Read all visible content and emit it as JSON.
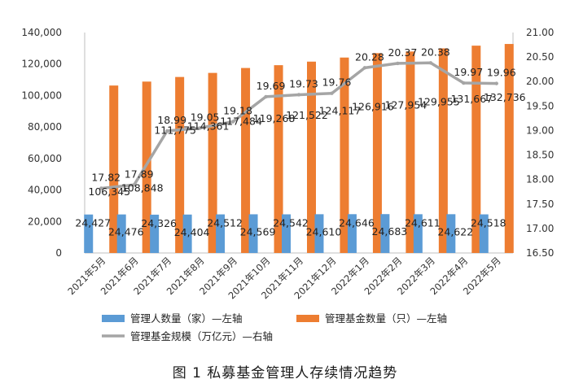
{
  "caption": "图 1 私募基金管理人存续情况趋势",
  "chart_data": {
    "type": "bar",
    "categories": [
      "2021年5月",
      "2021年6月",
      "2021年7月",
      "2021年8月",
      "2021年9月",
      "2021年10月",
      "2021年11月",
      "2021年12月",
      "2022年1月",
      "2022年2月",
      "2022年3月",
      "2022年4月",
      "2022年5月"
    ],
    "series": [
      {
        "name": "管理人数量（家）—左轴",
        "type": "bar",
        "axis": "left",
        "color": "#5B9BD5",
        "values": [
          24427,
          24476,
          24326,
          24404,
          24512,
          24569,
          24542,
          24610,
          24646,
          24683,
          24611,
          24622,
          24518
        ],
        "labels": [
          "24,427",
          "24,476",
          "24,326",
          "24,404",
          "24,512",
          "24,569",
          "24,542",
          "24,610",
          "24,646",
          "24,683",
          "24,611",
          "24,622",
          "24,518"
        ]
      },
      {
        "name": "管理基金数量（只）—左轴",
        "type": "bar",
        "axis": "left",
        "color": "#ED7D31",
        "values": [
          106345,
          108848,
          111775,
          114361,
          117484,
          119268,
          121522,
          124117,
          126916,
          127954,
          129955,
          131667,
          132736
        ],
        "labels": [
          "106,345",
          "108,848",
          "111,775",
          "114,361",
          "117,484",
          "119,268",
          "121,522",
          "124,117",
          "126,916",
          "127,954",
          "129,955",
          "131,667",
          "132,736"
        ]
      },
      {
        "name": "管理基金规模（万亿元）—右轴",
        "type": "line",
        "axis": "right",
        "color": "#A5A5A5",
        "values": [
          17.82,
          17.89,
          18.99,
          19.05,
          19.18,
          19.69,
          19.73,
          19.76,
          20.28,
          20.37,
          20.38,
          19.97,
          19.96
        ],
        "labels": [
          "17.82",
          "17.89",
          "18.99",
          "19.05",
          "19.18",
          "19.69",
          "19.73",
          "19.76",
          "20.28",
          "20.37",
          "20.38",
          "19.97",
          "19.96"
        ]
      }
    ],
    "y_left": {
      "min": 0,
      "max": 140000,
      "step": 20000,
      "ticks": [
        "0",
        "20,000",
        "40,000",
        "60,000",
        "80,000",
        "100,000",
        "120,000",
        "140,000"
      ]
    },
    "y_right": {
      "min": 16.5,
      "max": 21.0,
      "step": 0.5,
      "ticks": [
        "16.50",
        "17.00",
        "17.50",
        "18.00",
        "18.50",
        "19.00",
        "19.50",
        "20.00",
        "20.50",
        "21.00"
      ]
    },
    "grid": false,
    "legend_position": "bottom"
  }
}
